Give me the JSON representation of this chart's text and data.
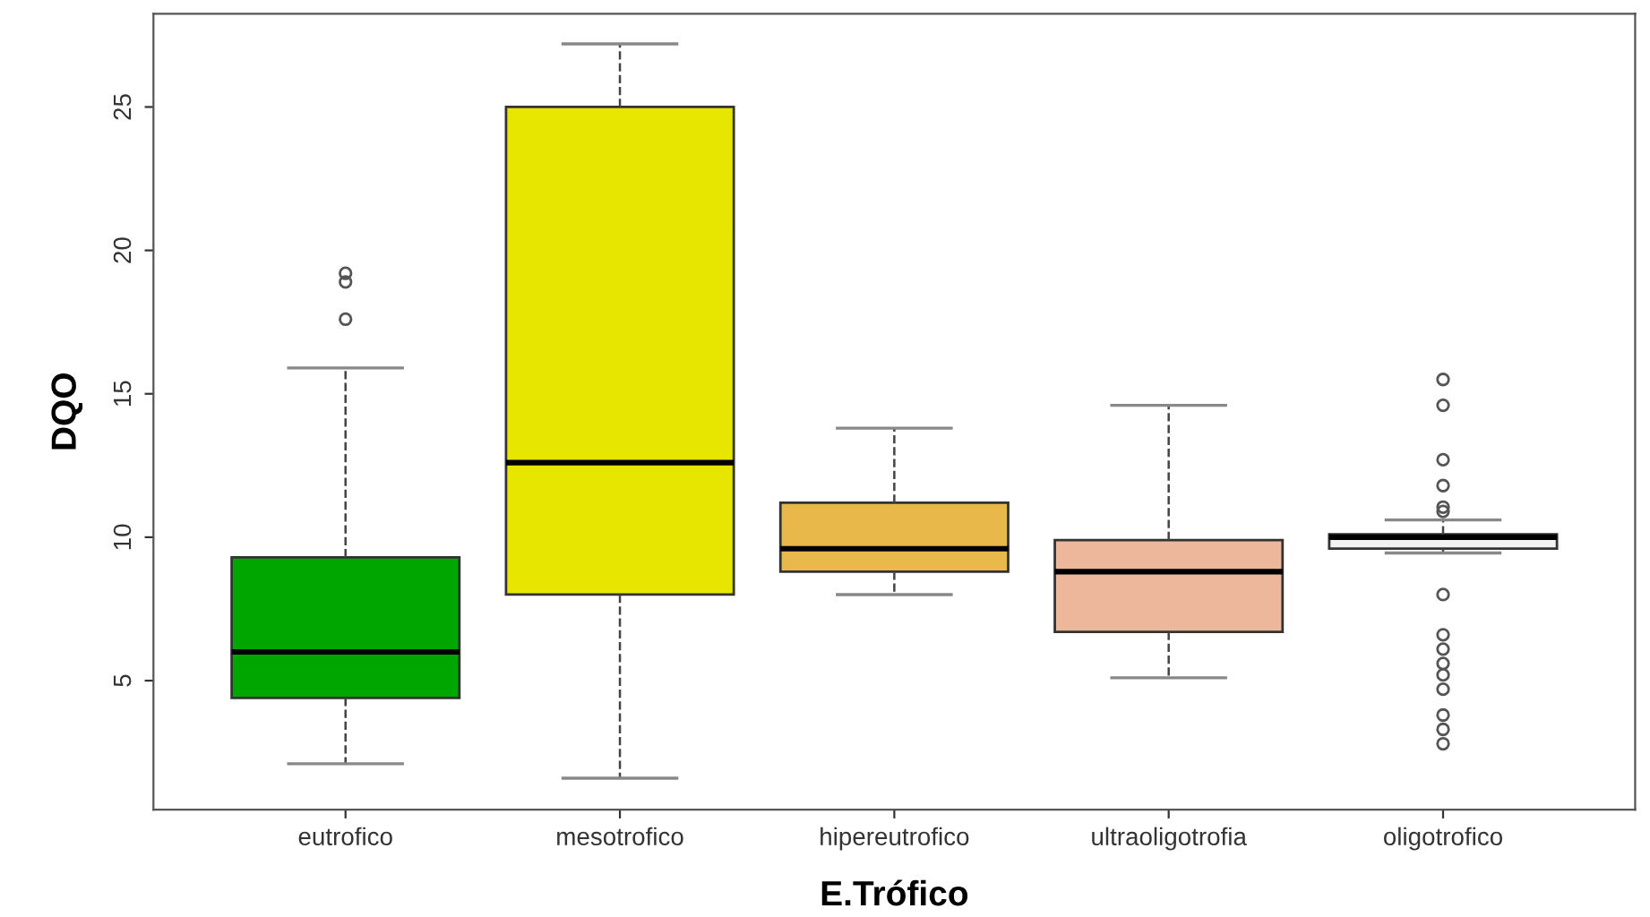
{
  "chart_data": {
    "type": "box",
    "xlabel": "E.Trófico",
    "ylabel": "DQO",
    "categories": [
      "eutrofico",
      "mesotrofico",
      "hipereutrofico",
      "ultraoligotrofia",
      "oligotrofico"
    ],
    "colors": [
      "#00a600",
      "#e6e600",
      "#e8b84b",
      "#edb79c",
      "#f2f2f2"
    ],
    "boxes": [
      {
        "low": 2.1,
        "q1": 4.4,
        "median": 6.0,
        "q3": 9.3,
        "high": 15.9,
        "outliers": [
          19.2,
          18.9,
          17.6
        ]
      },
      {
        "low": 1.6,
        "q1": 8.0,
        "median": 12.6,
        "q3": 25.0,
        "high": 27.2
      },
      {
        "low": 8.0,
        "q1": 8.8,
        "median": 9.6,
        "q3": 11.2,
        "high": 13.8
      },
      {
        "low": 5.1,
        "q1": 6.7,
        "median": 8.8,
        "q3": 9.9,
        "high": 14.6
      },
      {
        "low": 9.45,
        "q1": 9.6,
        "median": 10.0,
        "q3": 10.1,
        "high": 10.6,
        "outliers": [
          15.5,
          14.6,
          12.7,
          11.8,
          11.05,
          10.9,
          8.0,
          6.6,
          6.1,
          5.6,
          5.2,
          4.7,
          3.8,
          3.3,
          2.8
        ]
      }
    ],
    "ylim": [
      0.5,
      28.25
    ],
    "yticks": [
      5,
      10,
      15,
      20,
      25
    ],
    "grid": false,
    "line_style": "dashed"
  }
}
